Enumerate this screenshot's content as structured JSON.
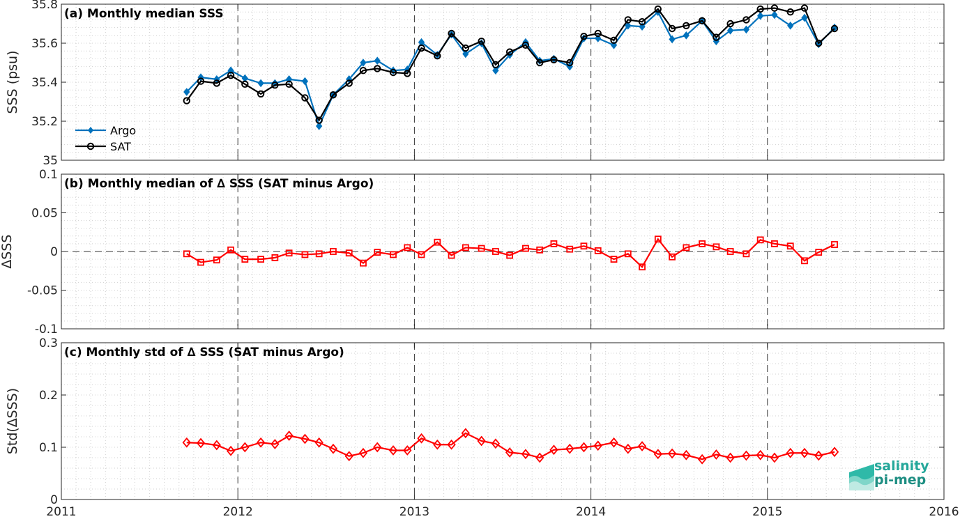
{
  "chart_data": [
    {
      "type": "line",
      "title": "(a) Monthly median SSS",
      "xlabel": "",
      "ylabel": "SSS (psu)",
      "xlim": [
        2011,
        2016
      ],
      "ylim": [
        35,
        35.8
      ],
      "x_ticks": [
        "2011",
        "2012",
        "2013",
        "2014",
        "2015",
        "2016"
      ],
      "y_ticks": [
        "35",
        "35.2",
        "35.4",
        "35.6",
        "35.8"
      ],
      "grid": true,
      "legend_position": "bottom-left",
      "x": [
        2011.71,
        2011.79,
        2011.88,
        2011.96,
        2012.04,
        2012.13,
        2012.21,
        2012.29,
        2012.38,
        2012.46,
        2012.54,
        2012.63,
        2012.71,
        2012.79,
        2012.88,
        2012.96,
        2013.04,
        2013.13,
        2013.21,
        2013.29,
        2013.38,
        2013.46,
        2013.54,
        2013.63,
        2013.71,
        2013.79,
        2013.88,
        2013.96,
        2014.04,
        2014.13,
        2014.21,
        2014.29,
        2014.38,
        2014.46,
        2014.54,
        2014.63,
        2014.71,
        2014.79,
        2014.88,
        2014.96,
        2015.04,
        2015.13,
        2015.21,
        2015.29,
        2015.38
      ],
      "series": [
        {
          "name": "Argo",
          "color": "#0072bd",
          "marker": "diamond",
          "values": [
            35.35,
            35.425,
            35.415,
            35.46,
            35.42,
            35.395,
            35.395,
            35.415,
            35.405,
            35.175,
            35.335,
            35.415,
            35.5,
            35.51,
            35.46,
            35.465,
            35.605,
            35.54,
            35.645,
            35.545,
            35.6,
            35.46,
            35.54,
            35.605,
            35.51,
            35.52,
            35.48,
            35.625,
            35.625,
            35.59,
            35.69,
            35.685,
            35.76,
            35.62,
            35.64,
            35.715,
            35.61,
            35.665,
            35.67,
            35.74,
            35.745,
            35.69,
            35.73,
            35.595,
            35.68
          ]
        },
        {
          "name": "SAT",
          "color": "#000000",
          "marker": "circle",
          "values": [
            35.305,
            35.405,
            35.395,
            35.435,
            35.39,
            35.34,
            35.385,
            35.39,
            35.32,
            35.205,
            35.335,
            35.395,
            35.46,
            35.47,
            35.45,
            35.445,
            35.575,
            35.535,
            35.65,
            35.575,
            35.61,
            35.49,
            35.555,
            35.59,
            35.5,
            35.515,
            35.5,
            35.635,
            35.65,
            35.615,
            35.72,
            35.71,
            35.775,
            35.675,
            35.69,
            35.715,
            35.63,
            35.7,
            35.72,
            35.775,
            35.78,
            35.76,
            35.78,
            35.6,
            35.675
          ]
        }
      ]
    },
    {
      "type": "line",
      "title": "(b) Monthly median of ∆ SSS (SAT minus Argo)",
      "xlabel": "",
      "ylabel": "∆SSS",
      "xlim": [
        2011,
        2016
      ],
      "ylim": [
        -0.1,
        0.1
      ],
      "x_ticks": [
        "2011",
        "2012",
        "2013",
        "2014",
        "2015",
        "2016"
      ],
      "y_ticks": [
        "-0.1",
        "-0.05",
        "0",
        "0.05",
        "0.1"
      ],
      "grid": true,
      "zero_line": true,
      "x": [
        2011.71,
        2011.79,
        2011.88,
        2011.96,
        2012.04,
        2012.13,
        2012.21,
        2012.29,
        2012.38,
        2012.46,
        2012.54,
        2012.63,
        2012.71,
        2012.79,
        2012.88,
        2012.96,
        2013.04,
        2013.13,
        2013.21,
        2013.29,
        2013.38,
        2013.46,
        2013.54,
        2013.63,
        2013.71,
        2013.79,
        2013.88,
        2013.96,
        2014.04,
        2014.13,
        2014.21,
        2014.29,
        2014.38,
        2014.46,
        2014.54,
        2014.63,
        2014.71,
        2014.79,
        2014.88,
        2014.96,
        2015.04,
        2015.13,
        2015.21,
        2015.29,
        2015.38
      ],
      "series": [
        {
          "color": "#ff0000",
          "marker": "square",
          "values": [
            -0.003,
            -0.014,
            -0.011,
            0.002,
            -0.01,
            -0.01,
            -0.008,
            -0.002,
            -0.004,
            -0.003,
            0.0,
            -0.002,
            -0.015,
            -0.001,
            -0.004,
            0.005,
            -0.004,
            0.012,
            -0.005,
            0.005,
            0.004,
            0.0,
            -0.005,
            0.004,
            0.002,
            0.01,
            0.003,
            0.007,
            0.001,
            -0.01,
            -0.003,
            -0.02,
            0.016,
            -0.007,
            0.005,
            0.01,
            0.006,
            0.0,
            -0.003,
            0.015,
            0.01,
            0.007,
            -0.012,
            -0.001,
            0.009
          ]
        }
      ]
    },
    {
      "type": "line",
      "title": "(c) Monthly std of ∆ SSS (SAT minus Argo)",
      "xlabel": "",
      "ylabel": "Std(∆SSS)",
      "xlim": [
        2011,
        2016
      ],
      "ylim": [
        0,
        0.3
      ],
      "x_ticks": [
        "2011",
        "2012",
        "2013",
        "2014",
        "2015",
        "2016"
      ],
      "y_ticks": [
        "0",
        "0.1",
        "0.2",
        "0.3"
      ],
      "grid": true,
      "x": [
        2011.71,
        2011.79,
        2011.88,
        2011.96,
        2012.04,
        2012.13,
        2012.21,
        2012.29,
        2012.38,
        2012.46,
        2012.54,
        2012.63,
        2012.71,
        2012.79,
        2012.88,
        2012.96,
        2013.04,
        2013.13,
        2013.21,
        2013.29,
        2013.38,
        2013.46,
        2013.54,
        2013.63,
        2013.71,
        2013.79,
        2013.88,
        2013.96,
        2014.04,
        2014.13,
        2014.21,
        2014.29,
        2014.38,
        2014.46,
        2014.54,
        2014.63,
        2014.71,
        2014.79,
        2014.88,
        2014.96,
        2015.04,
        2015.13,
        2015.21,
        2015.29,
        2015.38
      ],
      "series": [
        {
          "color": "#ff0000",
          "marker": "diamond",
          "values": [
            0.109,
            0.108,
            0.104,
            0.093,
            0.1,
            0.109,
            0.106,
            0.122,
            0.116,
            0.109,
            0.097,
            0.083,
            0.089,
            0.1,
            0.094,
            0.094,
            0.117,
            0.105,
            0.105,
            0.127,
            0.112,
            0.107,
            0.09,
            0.087,
            0.08,
            0.095,
            0.097,
            0.1,
            0.103,
            0.109,
            0.097,
            0.102,
            0.087,
            0.088,
            0.085,
            0.077,
            0.086,
            0.08,
            0.084,
            0.085,
            0.08,
            0.089,
            0.089,
            0.084,
            0.091
          ]
        }
      ]
    }
  ],
  "logo": {
    "line1": "salinity",
    "line2": "pi-mep"
  }
}
